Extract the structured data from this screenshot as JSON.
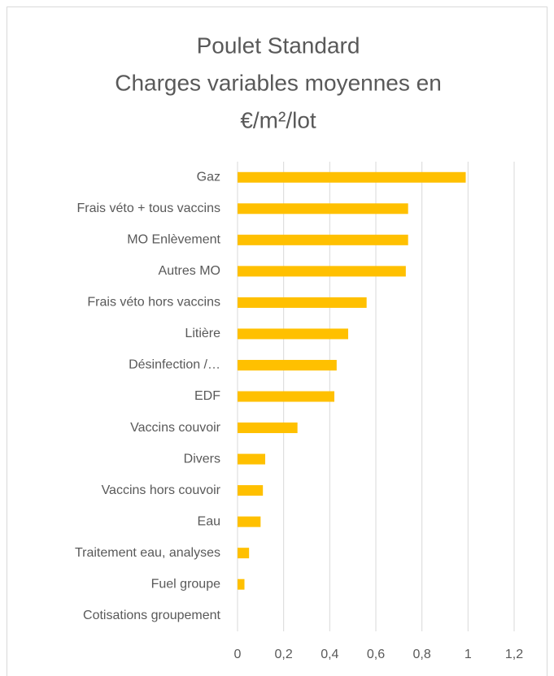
{
  "chart_data": {
    "type": "barh",
    "title": [
      "Poulet Standard",
      "Charges variables moyennes en",
      "€/m²/lot"
    ],
    "categories": [
      "Gaz",
      "Frais véto + tous vaccins",
      "MO Enlèvement",
      "Autres MO",
      "Frais véto hors vaccins",
      "Litière",
      "Désinfection /…",
      "EDF",
      "Vaccins couvoir",
      "Divers",
      "Vaccins hors couvoir",
      "Eau",
      "Traitement eau, analyses",
      "Fuel groupe",
      "Cotisations groupement"
    ],
    "values": [
      0.99,
      0.74,
      0.74,
      0.73,
      0.56,
      0.48,
      0.43,
      0.42,
      0.26,
      0.12,
      0.11,
      0.1,
      0.05,
      0.03,
      0
    ],
    "color": "#ffc000",
    "xlim": [
      0,
      1.2
    ],
    "xticks": [
      0,
      {
        "value": 0.2,
        "label": "0,2"
      },
      {
        "value": 0.4,
        "label": "0,4"
      },
      {
        "value": 0.6,
        "label": "0,6"
      },
      {
        "value": 0.8,
        "label": "0,8"
      },
      1,
      {
        "value": 1.2,
        "label": "1,2"
      }
    ],
    "grid": true
  }
}
